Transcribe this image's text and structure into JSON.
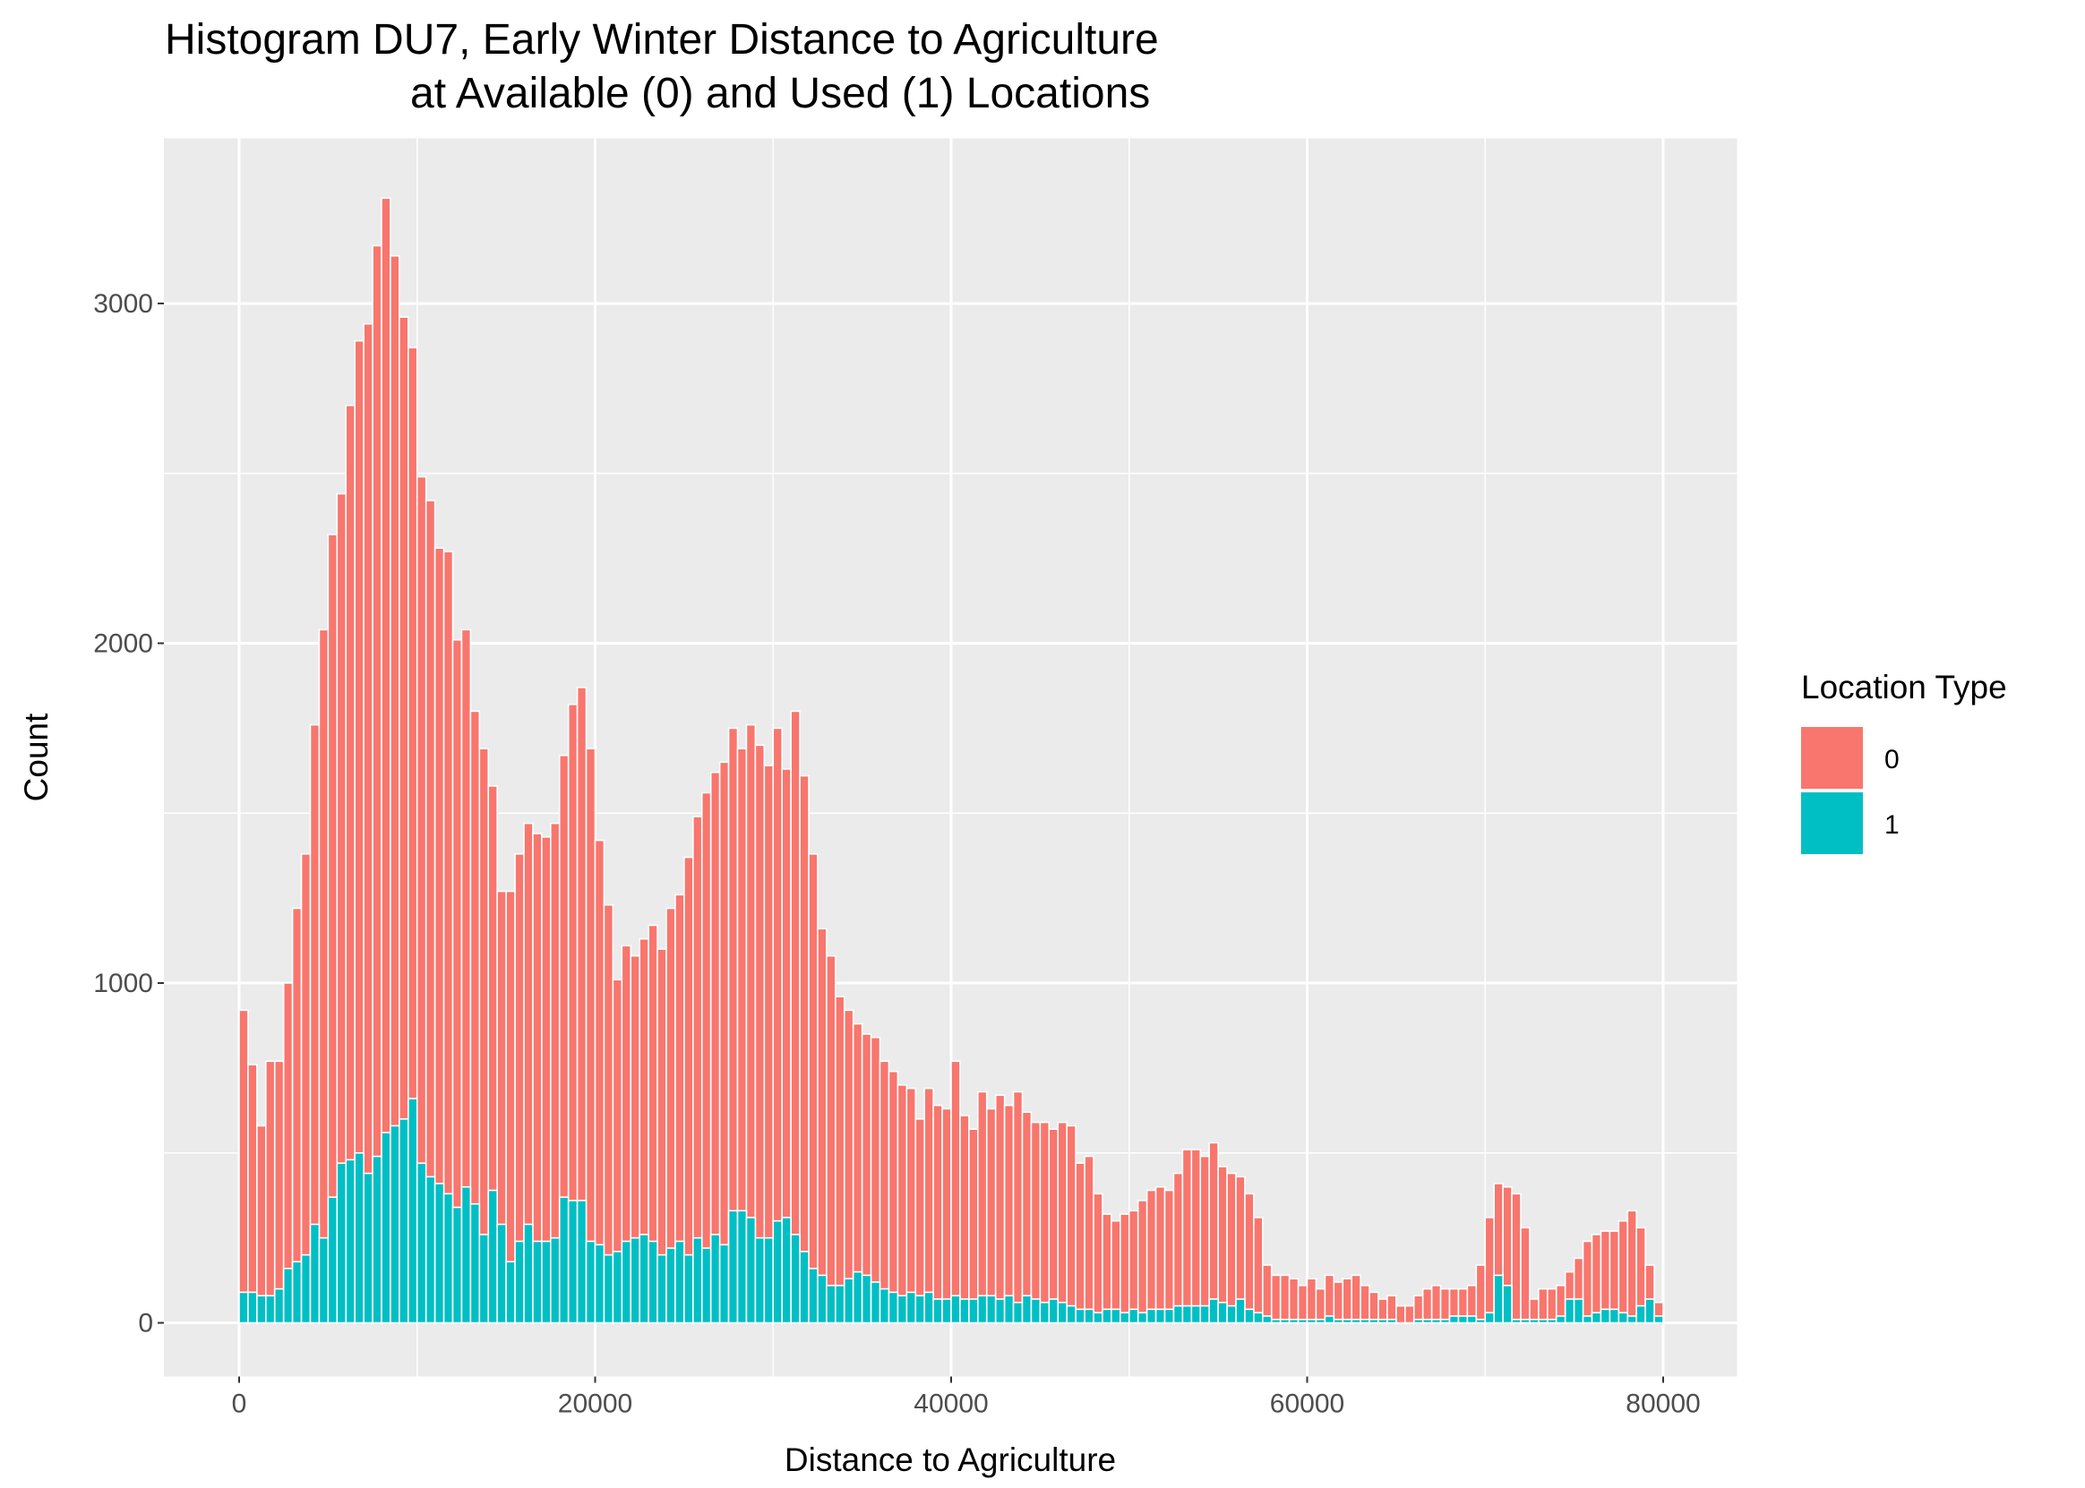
{
  "chart_data": {
    "type": "histogram",
    "title": [
      "Histogram DU7, Early Winter Distance to Agriculture",
      "at Available (0) and Used (1) Locations"
    ],
    "xlabel": "Distance to Agriculture",
    "ylabel": "Count",
    "legend_title": "Location Type",
    "bins": [
      0,
      500,
      1000,
      1500,
      2000,
      2500,
      3000,
      3500,
      4000,
      4500,
      5000,
      5500,
      6000,
      6500,
      7000,
      7500,
      8000,
      8500,
      9000,
      9500,
      10000,
      10500,
      11000,
      11500,
      12000,
      12500,
      13000,
      13500,
      14000,
      14500,
      15000,
      15500,
      16000,
      16500,
      17000,
      17500,
      18000,
      18500,
      19000,
      19500,
      20000,
      20500,
      21000,
      21500,
      22000,
      22500,
      23000,
      23500,
      24000,
      24500,
      25000,
      25500,
      26000,
      26500,
      27000,
      27500,
      28000,
      28500,
      29000,
      29500,
      30000,
      30500,
      31000,
      31500,
      32000,
      32500,
      33000,
      33500,
      34000,
      34500,
      35000,
      35500,
      36000,
      36500,
      37000,
      37500,
      38000,
      38500,
      39000,
      39500,
      40000,
      40500,
      41000,
      41500,
      42000,
      42500,
      43000,
      43500,
      44000,
      44500,
      45000,
      45500,
      46000,
      46500,
      47000,
      47500,
      48000,
      48500,
      49000,
      49500,
      50000,
      50500,
      51000,
      51500,
      52000,
      52500,
      53000,
      53500,
      54000,
      54500,
      55000,
      55500,
      56000,
      56500,
      57000,
      57500,
      58000,
      58500,
      59000,
      59500,
      60000,
      60500,
      61000,
      61500,
      62000,
      62500,
      63000,
      63500,
      64000,
      64500,
      65000,
      65500,
      66000,
      66500,
      67000,
      67500,
      68000,
      68500,
      69000,
      69500,
      70000,
      70500,
      71000,
      71500,
      72000,
      72500,
      73000,
      73500,
      74000,
      74500,
      75000,
      75500,
      76000,
      76500,
      77000,
      77500,
      78000,
      78500,
      79000,
      79500,
      80000
    ],
    "series": [
      {
        "name": "0",
        "color": "#F8766D",
        "values": [
          920,
          760,
          580,
          770,
          770,
          1000,
          1220,
          1380,
          1760,
          2040,
          2320,
          2440,
          2700,
          2890,
          2940,
          3170,
          3310,
          3140,
          2960,
          2870,
          2490,
          2420,
          2280,
          2270,
          2010,
          2040,
          1800,
          1690,
          1580,
          1270,
          1270,
          1380,
          1470,
          1440,
          1430,
          1470,
          1670,
          1820,
          1870,
          1690,
          1420,
          1230,
          1010,
          1110,
          1080,
          1130,
          1170,
          1100,
          1220,
          1260,
          1370,
          1490,
          1560,
          1620,
          1650,
          1750,
          1690,
          1760,
          1700,
          1640,
          1750,
          1630,
          1800,
          1610,
          1380,
          1160,
          1080,
          960,
          920,
          880,
          850,
          840,
          770,
          740,
          700,
          690,
          600,
          690,
          640,
          630,
          770,
          610,
          570,
          680,
          630,
          670,
          640,
          680,
          620,
          590,
          590,
          570,
          590,
          580,
          470,
          490,
          380,
          320,
          300,
          320,
          330,
          360,
          390,
          400,
          390,
          440,
          510,
          510,
          490,
          530,
          460,
          440,
          430,
          380,
          310,
          170,
          140,
          140,
          130,
          110,
          130,
          100,
          140,
          120,
          130,
          140,
          110,
          90,
          70,
          80,
          50,
          50,
          80,
          100,
          110,
          100,
          100,
          100,
          110,
          170,
          310,
          410,
          400,
          380,
          280,
          70,
          100,
          100,
          110,
          150,
          190,
          240,
          260,
          270,
          270,
          300,
          330,
          280,
          170,
          60
        ]
      },
      {
        "name": "1",
        "color": "#00BFC4",
        "values": [
          90,
          90,
          80,
          80,
          100,
          160,
          180,
          200,
          290,
          250,
          370,
          470,
          480,
          500,
          440,
          490,
          560,
          580,
          600,
          660,
          470,
          430,
          410,
          380,
          340,
          400,
          350,
          260,
          390,
          290,
          180,
          240,
          290,
          240,
          240,
          250,
          370,
          360,
          360,
          240,
          230,
          200,
          210,
          240,
          250,
          260,
          240,
          200,
          220,
          240,
          200,
          250,
          220,
          260,
          230,
          330,
          330,
          310,
          250,
          250,
          300,
          310,
          260,
          210,
          160,
          140,
          110,
          110,
          130,
          150,
          140,
          120,
          100,
          90,
          80,
          90,
          80,
          90,
          70,
          70,
          80,
          70,
          70,
          80,
          80,
          70,
          80,
          60,
          80,
          70,
          60,
          70,
          60,
          50,
          40,
          40,
          30,
          40,
          40,
          30,
          40,
          30,
          40,
          40,
          40,
          50,
          50,
          50,
          50,
          70,
          60,
          50,
          70,
          40,
          30,
          20,
          10,
          10,
          10,
          10,
          10,
          10,
          20,
          10,
          10,
          10,
          10,
          10,
          10,
          10,
          0,
          0,
          10,
          10,
          10,
          10,
          20,
          20,
          20,
          10,
          30,
          140,
          110,
          10,
          10,
          10,
          10,
          10,
          20,
          70,
          70,
          20,
          30,
          40,
          40,
          30,
          20,
          50,
          70,
          20
        ]
      }
    ],
    "xlim": [
      -4226,
      84151
    ],
    "ylim": [
      -158,
      3486
    ],
    "xticks": [
      0,
      20000,
      40000,
      60000,
      80000
    ],
    "yticks": [
      0,
      1000,
      2000,
      3000
    ],
    "grid": true
  }
}
